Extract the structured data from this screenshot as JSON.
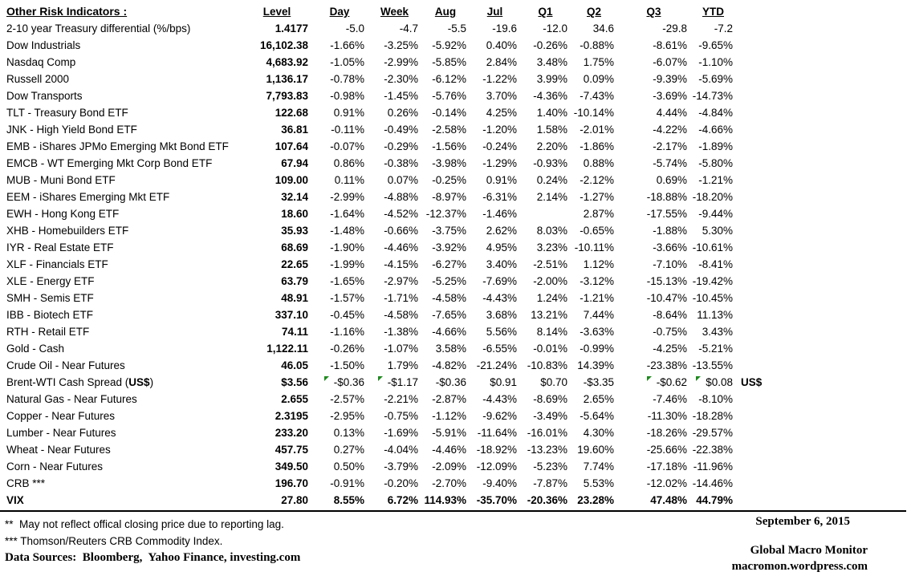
{
  "title": "Other Risk Indicators :",
  "columns": [
    "Level",
    "Day",
    "Week",
    "Aug",
    "Jul",
    "Q1",
    "Q2",
    "Q3",
    "YTD"
  ],
  "colors": {
    "background": "#ffffff",
    "text": "#000000",
    "flag_green": "#1f8a1f"
  },
  "rows": [
    {
      "name": "2-10 year Treasury differential (%/bps)",
      "level": "1.4177",
      "day": "-5.0",
      "week": "-4.7",
      "aug": "-5.5",
      "jul": "-19.6",
      "q1": "-12.0",
      "q2": "34.6",
      "q3": "-29.8",
      "ytd": "-7.2"
    },
    {
      "name": "Dow Industrials",
      "level": "16,102.38",
      "day": "-1.66%",
      "week": "-3.25%",
      "aug": "-5.92%",
      "jul": "0.40%",
      "q1": "-0.26%",
      "q2": "-0.88%",
      "q3": "-8.61%",
      "ytd": "-9.65%"
    },
    {
      "name": "Nasdaq Comp",
      "level": "4,683.92",
      "day": "-1.05%",
      "week": "-2.99%",
      "aug": "-5.85%",
      "jul": "2.84%",
      "q1": "3.48%",
      "q2": "1.75%",
      "q3": "-6.07%",
      "ytd": "-1.10%"
    },
    {
      "name": "Russell 2000",
      "level": "1,136.17",
      "day": "-0.78%",
      "week": "-2.30%",
      "aug": "-6.12%",
      "jul": "-1.22%",
      "q1": "3.99%",
      "q2": "0.09%",
      "q3": "-9.39%",
      "ytd": "-5.69%"
    },
    {
      "name": "Dow Transports",
      "level": "7,793.83",
      "day": "-0.98%",
      "week": "-1.45%",
      "aug": "-5.76%",
      "jul": "3.70%",
      "q1": "-4.36%",
      "q2": "-7.43%",
      "q3": "-3.69%",
      "ytd": "-14.73%"
    },
    {
      "name": "TLT - Treasury Bond ETF",
      "level": "122.68",
      "day": "0.91%",
      "week": "0.26%",
      "aug": "-0.14%",
      "jul": "4.25%",
      "q1": "1.40%",
      "q2": "-10.14%",
      "q3": "4.44%",
      "ytd": "-4.84%"
    },
    {
      "name": "JNK - High Yield Bond ETF",
      "level": "36.81",
      "day": "-0.11%",
      "week": "-0.49%",
      "aug": "-2.58%",
      "jul": "-1.20%",
      "q1": "1.58%",
      "q2": "-2.01%",
      "q3": "-4.22%",
      "ytd": "-4.66%"
    },
    {
      "name": "EMB - iShares JPMo Emerging Mkt Bond ETF",
      "level": "107.64",
      "day": "-0.07%",
      "week": "-0.29%",
      "aug": "-1.56%",
      "jul": "-0.24%",
      "q1": "2.20%",
      "q2": "-1.86%",
      "q3": "-2.17%",
      "ytd": "-1.89%"
    },
    {
      "name": "EMCB - WT Emerging Mkt Corp Bond ETF",
      "level": "67.94",
      "day": "0.86%",
      "week": "-0.38%",
      "aug": "-3.98%",
      "jul": "-1.29%",
      "q1": "-0.93%",
      "q2": "0.88%",
      "q3": "-5.74%",
      "ytd": "-5.80%"
    },
    {
      "name": "MUB - Muni Bond ETF",
      "level": "109.00",
      "day": "0.11%",
      "week": "0.07%",
      "aug": "-0.25%",
      "jul": "0.91%",
      "q1": "0.24%",
      "q2": "-2.12%",
      "q3": "0.69%",
      "ytd": "-1.21%"
    },
    {
      "name": "EEM - iShares Emerging Mkt ETF",
      "level": "32.14",
      "day": "-2.99%",
      "week": "-4.88%",
      "aug": "-8.97%",
      "jul": "-6.31%",
      "q1": "2.14%",
      "q2": "-1.27%",
      "q3": "-18.88%",
      "ytd": "-18.20%"
    },
    {
      "name": "EWH - Hong Kong ETF",
      "level": "18.60",
      "day": "-1.64%",
      "week": "-4.52%",
      "aug": "-12.37%",
      "jul": "-1.46%",
      "q1": "",
      "q2": "2.87%",
      "q3": "-17.55%",
      "ytd": "-9.44%"
    },
    {
      "name": "XHB - Homebuilders ETF",
      "level": "35.93",
      "day": "-1.48%",
      "week": "-0.66%",
      "aug": "-3.75%",
      "jul": "2.62%",
      "q1": "8.03%",
      "q2": "-0.65%",
      "q3": "-1.88%",
      "ytd": "5.30%"
    },
    {
      "name": "IYR - Real Estate ETF",
      "level": "68.69",
      "day": "-1.90%",
      "week": "-4.46%",
      "aug": "-3.92%",
      "jul": "4.95%",
      "q1": "3.23%",
      "q2": "-10.11%",
      "q3": "-3.66%",
      "ytd": "-10.61%"
    },
    {
      "name": "XLF - Financials ETF",
      "level": "22.65",
      "day": "-1.99%",
      "week": "-4.15%",
      "aug": "-6.27%",
      "jul": "3.40%",
      "q1": "-2.51%",
      "q2": "1.12%",
      "q3": "-7.10%",
      "ytd": "-8.41%"
    },
    {
      "name": "XLE - Energy ETF",
      "level": "63.79",
      "day": "-1.65%",
      "week": "-2.97%",
      "aug": "-5.25%",
      "jul": "-7.69%",
      "q1": "-2.00%",
      "q2": "-3.12%",
      "q3": "-15.13%",
      "ytd": "-19.42%"
    },
    {
      "name": "SMH - Semis ETF",
      "level": "48.91",
      "day": "-1.57%",
      "week": "-1.71%",
      "aug": "-4.58%",
      "jul": "-4.43%",
      "q1": "1.24%",
      "q2": "-1.21%",
      "q3": "-10.47%",
      "ytd": "-10.45%"
    },
    {
      "name": "IBB - Biotech ETF",
      "level": "337.10",
      "day": "-0.45%",
      "week": "-4.58%",
      "aug": "-7.65%",
      "jul": "3.68%",
      "q1": "13.21%",
      "q2": "7.44%",
      "q3": "-8.64%",
      "ytd": "11.13%"
    },
    {
      "name": "RTH - Retail ETF",
      "level": "74.11",
      "day": "-1.16%",
      "week": "-1.38%",
      "aug": "-4.66%",
      "jul": "5.56%",
      "q1": "8.14%",
      "q2": "-3.63%",
      "q3": "-0.75%",
      "ytd": "3.43%"
    },
    {
      "name": "Gold - Cash",
      "level": "1,122.11",
      "day": "-0.26%",
      "week": "-1.07%",
      "aug": "3.58%",
      "jul": "-6.55%",
      "q1": "-0.01%",
      "q2": "-0.99%",
      "q3": "-4.25%",
      "ytd": "-5.21%"
    },
    {
      "name": "Crude Oil - Near Futures",
      "level": "46.05",
      "day": "-1.50%",
      "week": "1.79%",
      "aug": "-4.82%",
      "jul": "-21.24%",
      "q1": "-10.83%",
      "q2": "14.39%",
      "q3": "-23.38%",
      "ytd": "-13.55%"
    },
    {
      "name": "Brent-WTI Cash Spread (",
      "name_bold": "US$",
      "name_end": ")",
      "level": "$3.56",
      "day": "-$0.36",
      "week": "-$1.17",
      "aug": "-$0.36",
      "jul": "$0.91",
      "q1": "$0.70",
      "q2": "-$3.35",
      "q3": "-$0.62",
      "ytd": "$0.08",
      "suffix": "US$",
      "flags": [
        "day",
        "week",
        "q3",
        "ytd"
      ]
    },
    {
      "name": "Natural Gas - Near Futures",
      "level": "2.655",
      "day": "-2.57%",
      "week": "-2.21%",
      "aug": "-2.87%",
      "jul": "-4.43%",
      "q1": "-8.69%",
      "q2": "2.65%",
      "q3": "-7.46%",
      "ytd": "-8.10%"
    },
    {
      "name": "Copper - Near Futures",
      "level": "2.3195",
      "day": "-2.95%",
      "week": "-0.75%",
      "aug": "-1.12%",
      "jul": "-9.62%",
      "q1": "-3.49%",
      "q2": "-5.64%",
      "q3": "-11.30%",
      "ytd": "-18.28%"
    },
    {
      "name": "Lumber - Near Futures",
      "level": "233.20",
      "day": "0.13%",
      "week": "-1.69%",
      "aug": "-5.91%",
      "jul": "-11.64%",
      "q1": "-16.01%",
      "q2": "4.30%",
      "q3": "-18.26%",
      "ytd": "-29.57%"
    },
    {
      "name": "Wheat - Near Futures",
      "level": "457.75",
      "day": "0.27%",
      "week": "-4.04%",
      "aug": "-4.46%",
      "jul": "-18.92%",
      "q1": "-13.23%",
      "q2": "19.60%",
      "q3": "-25.66%",
      "ytd": "-22.38%"
    },
    {
      "name": "Corn - Near Futures",
      "level": "349.50",
      "day": "0.50%",
      "week": "-3.79%",
      "aug": "-2.09%",
      "jul": "-12.09%",
      "q1": "-5.23%",
      "q2": "7.74%",
      "q3": "-17.18%",
      "ytd": "-11.96%"
    },
    {
      "name": "CRB ***",
      "level": "196.70",
      "day": "-0.91%",
      "week": "-0.20%",
      "aug": "-2.70%",
      "jul": "-9.40%",
      "q1": "-7.87%",
      "q2": "5.53%",
      "q3": "-12.02%",
      "ytd": "-14.46%"
    },
    {
      "name": "VIX",
      "level": "27.80",
      "day": "8.55%",
      "week": "6.72%",
      "aug": "114.93%",
      "jul": "-35.70%",
      "q1": "-20.36%",
      "q2": "23.28%",
      "q3": "47.48%",
      "ytd": "44.79%",
      "bold": true
    }
  ],
  "footnotes": {
    "reporting_lag": "**  May not reflect offical closing price due to reporting lag.",
    "crb_index": "*** Thomson/Reuters CRB Commodity Index.",
    "data_sources": "Data Sources:  Bloomberg,  Yahoo Finance, investing.com"
  },
  "footer_right": {
    "date": "September 6, 2015",
    "publication": "Global Macro Monitor",
    "website": "macromon.wordpress.com"
  }
}
